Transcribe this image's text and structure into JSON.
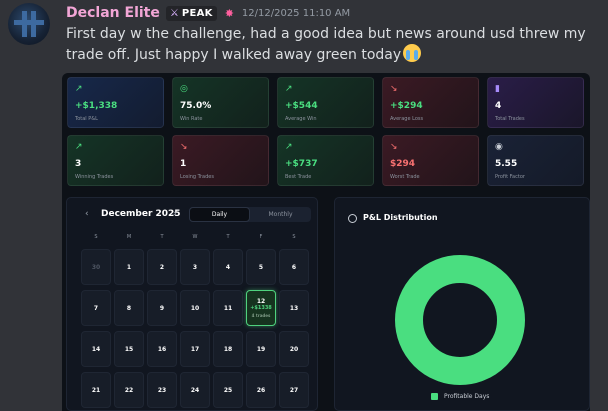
{
  "message": {
    "username": "Declan Elite",
    "tag": {
      "icon": "crossed-swords-icon",
      "label": "PEAK"
    },
    "role_icon": "role-emblem-icon",
    "timestamp": "12/12/2025 11:10 AM",
    "text": "First day w the challenge, had a good idea but news around usd threw my trade off. Just happy I walked away green today",
    "emoji": "loudly-crying-face-emoji"
  },
  "stats": [
    {
      "icon": "↗",
      "value": "+$1,338",
      "label": "Total P&L",
      "theme": "blue",
      "color": "#4ade80"
    },
    {
      "icon": "◎",
      "value": "75.0%",
      "label": "Win Rate",
      "theme": "green",
      "color": "#ffffff"
    },
    {
      "icon": "↗",
      "value": "+$544",
      "label": "Average Win",
      "theme": "green",
      "color": "#4ade80"
    },
    {
      "icon": "↘",
      "value": "+$294",
      "label": "Average Loss",
      "theme": "red",
      "color": "#4ade80"
    },
    {
      "icon": "▮",
      "value": "4",
      "label": "Total Trades",
      "theme": "purple",
      "color": "#ffffff"
    },
    {
      "icon": "↗",
      "value": "3",
      "label": "Winning Trades",
      "theme": "green",
      "color": "#ffffff"
    },
    {
      "icon": "↘",
      "value": "1",
      "label": "Losing Trades",
      "theme": "red",
      "color": "#ffffff"
    },
    {
      "icon": "↗",
      "value": "+$737",
      "label": "Best Trade",
      "theme": "green",
      "color": "#4ade80"
    },
    {
      "icon": "↘",
      "value": "$294",
      "label": "Worst Trade",
      "theme": "red",
      "color": "#f87171"
    },
    {
      "icon": "◉",
      "value": "5.55",
      "label": "Profit Factor",
      "theme": "navy",
      "color": "#ffffff"
    }
  ],
  "calendar": {
    "prev_icon": "‹",
    "next_icon": "›",
    "month": "December 2025",
    "view_daily": "Daily",
    "view_monthly": "Monthly",
    "weekdays": [
      "S",
      "M",
      "T",
      "W",
      "T",
      "F",
      "S"
    ],
    "weeks": [
      [
        "30",
        "1",
        "2",
        "3",
        "4",
        "5",
        "6"
      ],
      [
        "7",
        "8",
        "9",
        "10",
        "11",
        "12",
        "13"
      ],
      [
        "14",
        "15",
        "16",
        "17",
        "18",
        "19",
        "20"
      ],
      [
        "21",
        "22",
        "23",
        "24",
        "25",
        "26",
        "27"
      ]
    ],
    "muted_day": "30",
    "active_day": "12",
    "active_pnl": "+$1338",
    "active_trades": "4 trades"
  },
  "pl_distribution": {
    "icon": "pie-chart-icon",
    "title": "P&L Distribution",
    "legend_label": "Profitable Days",
    "legend_color": "#4ade80"
  }
}
